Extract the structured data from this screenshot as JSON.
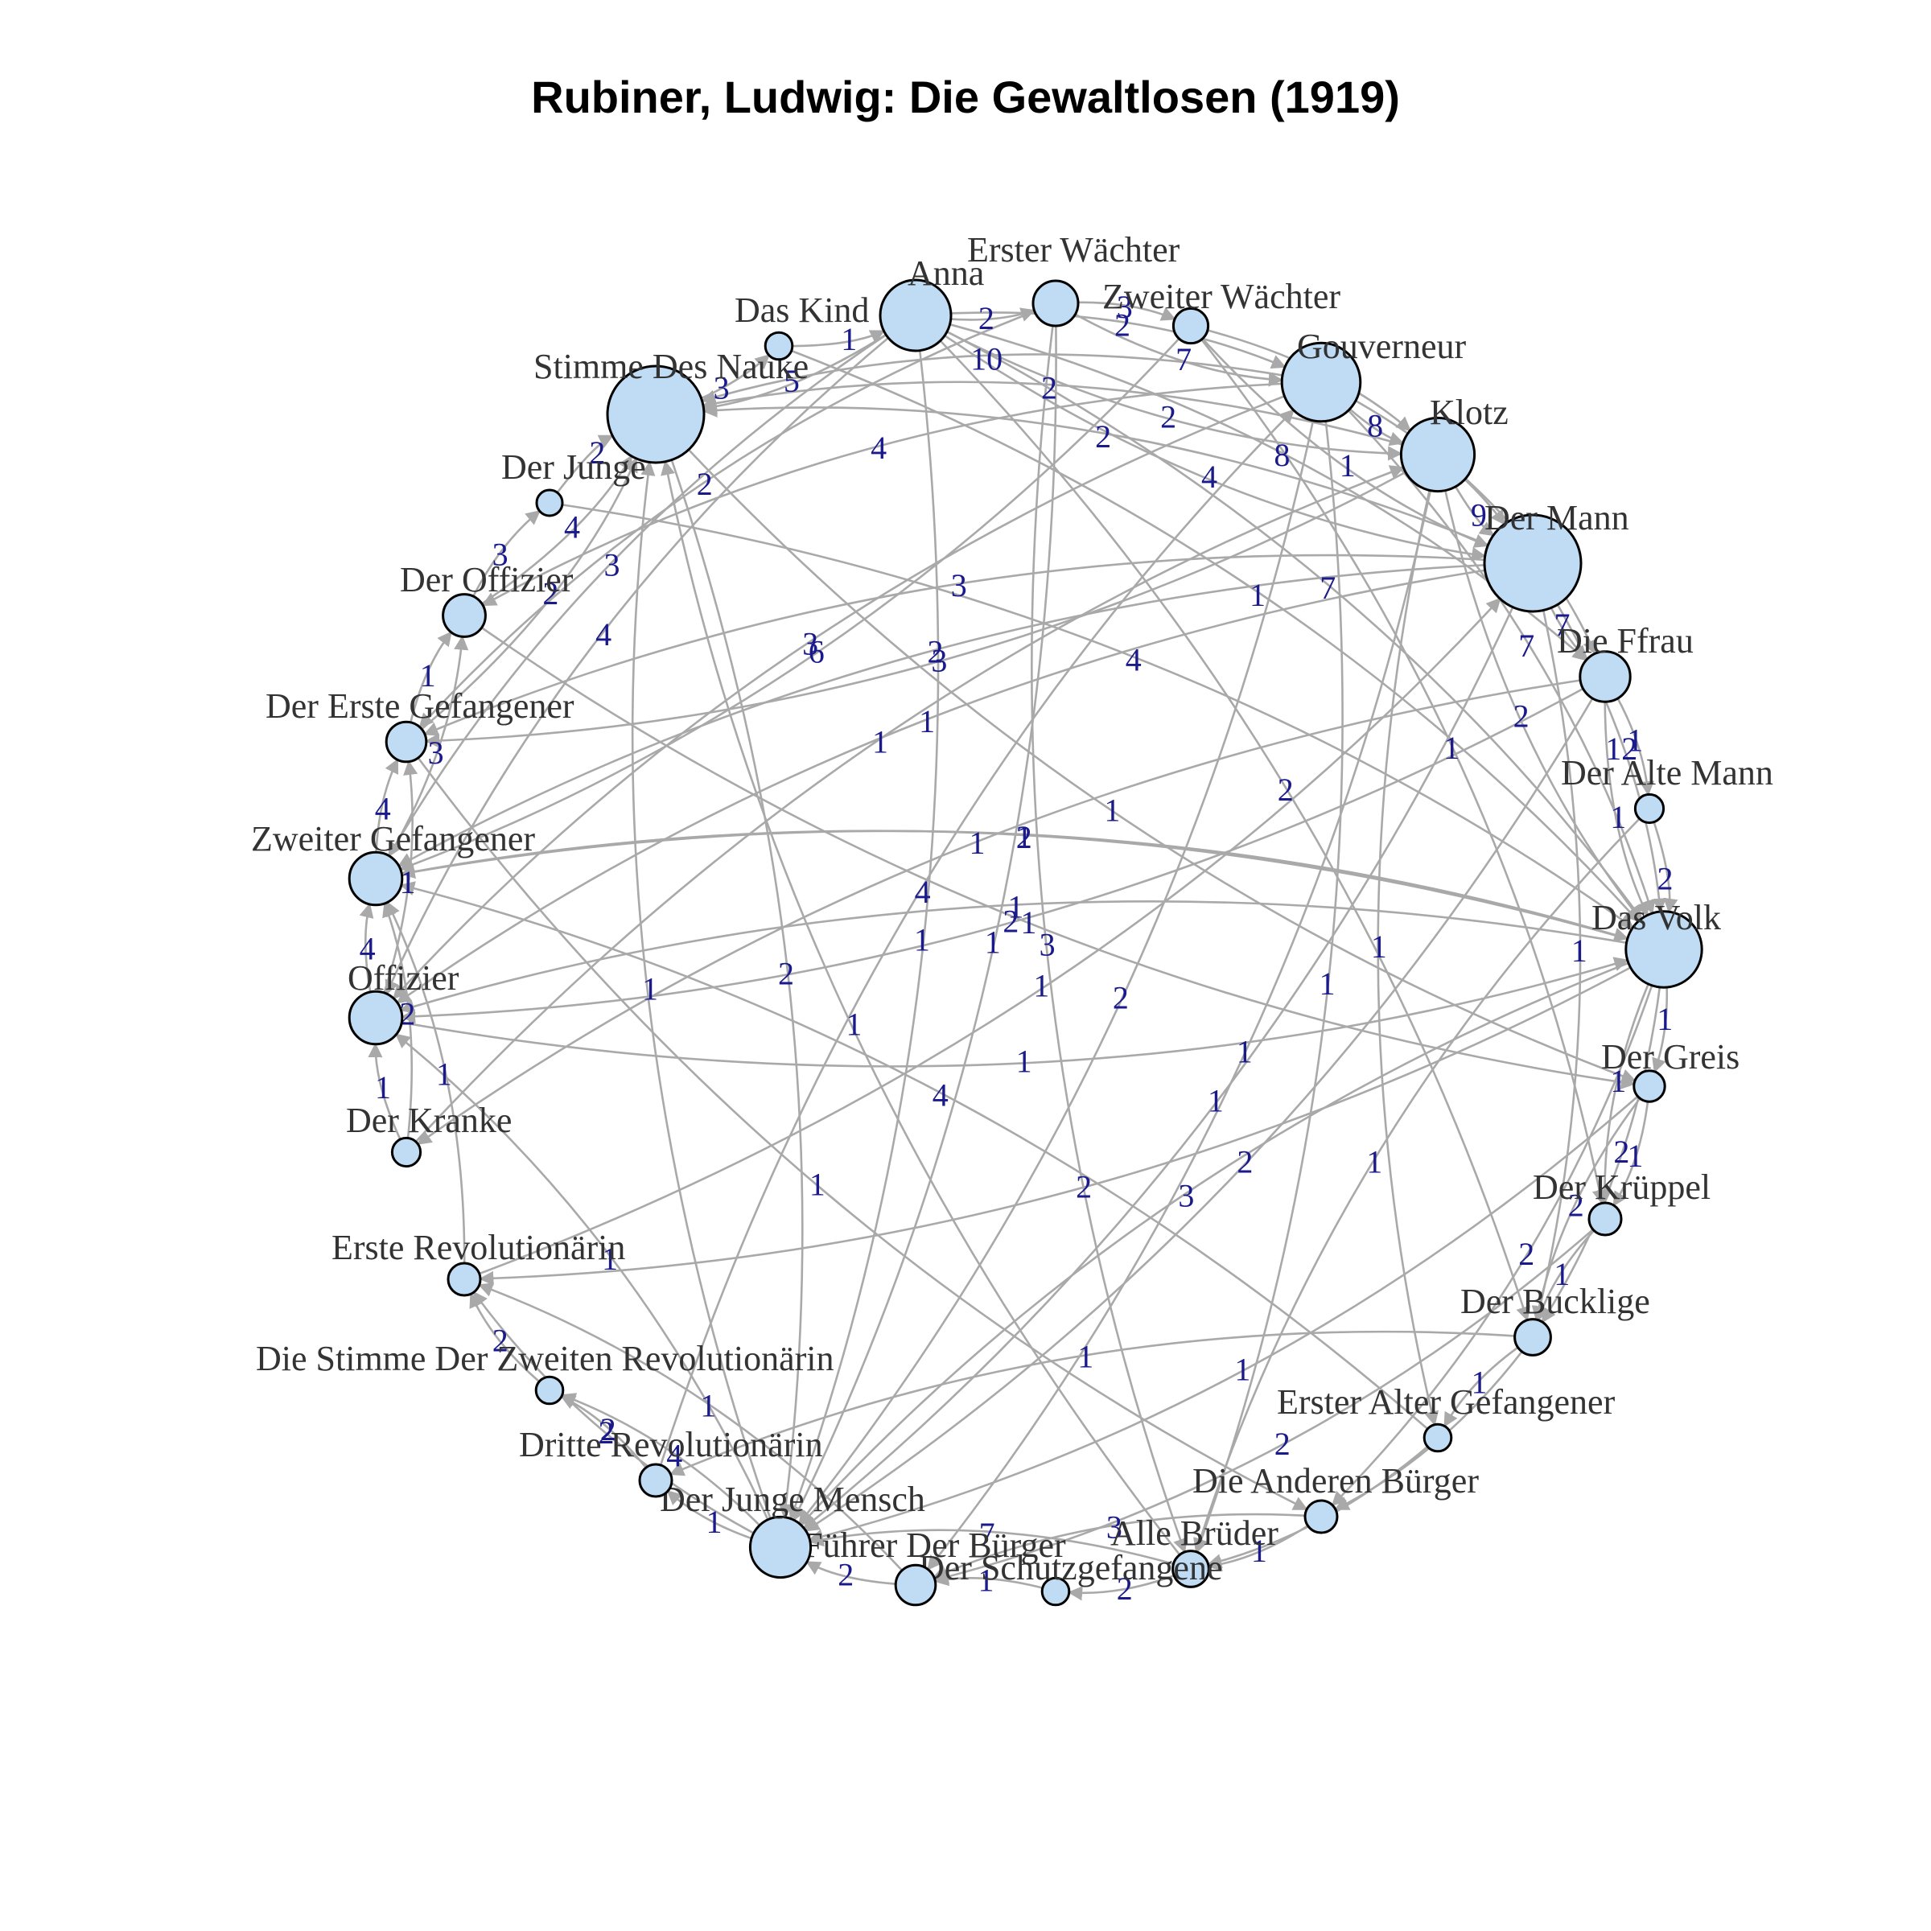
{
  "title": "Rubiner, Ludwig: Die Gewaltlosen (1919)",
  "colors": {
    "node_fill": "#bfdcf4",
    "edge": "#a9a9a9",
    "edge_label": "#1a1a8c",
    "node_label": "#333333"
  },
  "nodes": [
    {
      "id": "anna",
      "label": "Anna",
      "size": 4
    },
    {
      "id": "erster-waechter",
      "label": "Erster Wächter",
      "size": 2
    },
    {
      "id": "zweiter-waechter",
      "label": "Zweiter Wächter",
      "size": 1.2
    },
    {
      "id": "gouverneur",
      "label": "Gouverneur",
      "size": 4.6
    },
    {
      "id": "klotz",
      "label": "Klotz",
      "size": 4.2
    },
    {
      "id": "der-mann",
      "label": "Der Mann",
      "size": 6
    },
    {
      "id": "die-ffrau",
      "label": "Die Ffrau",
      "size": 2.4
    },
    {
      "id": "der-alte-mann",
      "label": "Der Alte Mann",
      "size": 0.7
    },
    {
      "id": "das-volk",
      "label": "Das Volk",
      "size": 4.4
    },
    {
      "id": "der-greis",
      "label": "Der Greis",
      "size": 0.9
    },
    {
      "id": "der-krueppel",
      "label": "Der Krüppel",
      "size": 1
    },
    {
      "id": "der-bucklige",
      "label": "Der Bucklige",
      "size": 1.3
    },
    {
      "id": "erster-alter-gefangener",
      "label": "Erster Alter Gefangener",
      "size": 0.6
    },
    {
      "id": "die-anderen-buerger",
      "label": "Die Anderen Bürger",
      "size": 1
    },
    {
      "id": "alle-brueder",
      "label": "Alle Brüder",
      "size": 1.3
    },
    {
      "id": "der-schutzgefangene",
      "label": "Der Schutzgefangene",
      "size": 0.6
    },
    {
      "id": "fuehrer-der-buerger",
      "label": "Führer Der Bürger",
      "size": 1.6
    },
    {
      "id": "der-junge-mensch",
      "label": "Der Junge Mensch",
      "size": 3.2
    },
    {
      "id": "dritte-revolutionaerin",
      "label": "Dritte Revolutionärin",
      "size": 1
    },
    {
      "id": "die-stimme-der-zweiten-revolutionaerin",
      "label": "Die Stimme Der Zweiten Revolutionärin",
      "size": 0.6
    },
    {
      "id": "erste-revolutionaerin",
      "label": "Erste Revolutionärin",
      "size": 1
    },
    {
      "id": "der-kranke",
      "label": "Der Kranke",
      "size": 0.7
    },
    {
      "id": "offizier",
      "label": "Offizier",
      "size": 2.6
    },
    {
      "id": "zweiter-gefangener",
      "label": "Zweiter Gefangener",
      "size": 2.6
    },
    {
      "id": "der-erste-gefangener",
      "label": "Der Erste Gefangener",
      "size": 1.6
    },
    {
      "id": "der-offizier",
      "label": "Der Offizier",
      "size": 1.8
    },
    {
      "id": "der-junge",
      "label": "Der Junge",
      "size": 0.5
    },
    {
      "id": "stimme-des-nauke",
      "label": "Stimme Des Nauke",
      "size": 6
    },
    {
      "id": "das-kind",
      "label": "Das Kind",
      "size": 0.6
    }
  ],
  "edges": [
    {
      "source": "anna",
      "target": "gouverneur",
      "weight": "2"
    },
    {
      "source": "anna",
      "target": "der-mann",
      "weight": "4"
    },
    {
      "source": "anna",
      "target": "das-volk",
      "weight": "7"
    },
    {
      "source": "anna",
      "target": "klotz",
      "weight": "2"
    },
    {
      "source": "anna",
      "target": "stimme-des-nauke",
      "weight": "5"
    },
    {
      "source": "anna",
      "target": "zweiter-gefangener",
      "weight": "3"
    },
    {
      "source": "anna",
      "target": "der-junge-mensch",
      "weight": "1"
    },
    {
      "source": "anna",
      "target": "erster-waechter",
      "weight": "2"
    },
    {
      "source": "anna",
      "target": "die-ffrau",
      "weight": "8"
    },
    {
      "source": "anna",
      "target": "offizier",
      "weight": "4"
    },
    {
      "source": "erster-waechter",
      "target": "zweiter-waechter",
      "weight": "3"
    },
    {
      "source": "erster-waechter",
      "target": "gouverneur",
      "weight": "7"
    },
    {
      "source": "erster-waechter",
      "target": "der-junge-mensch",
      "weight": "1"
    },
    {
      "source": "erster-waechter",
      "target": "der-erste-gefangener",
      "weight": "2"
    },
    {
      "source": "zweiter-waechter",
      "target": "klotz",
      "weight": "2"
    },
    {
      "source": "zweiter-waechter",
      "target": "der-mann",
      "weight": "1"
    },
    {
      "source": "zweiter-waechter",
      "target": "zweiter-gefangener",
      "weight": "6"
    },
    {
      "source": "gouverneur",
      "target": "klotz",
      "weight": "8"
    },
    {
      "source": "gouverneur",
      "target": "der-mann",
      "weight": "10"
    },
    {
      "source": "gouverneur",
      "target": "stimme-des-nauke",
      "weight": "10"
    },
    {
      "source": "gouverneur",
      "target": "das-volk",
      "weight": "7"
    },
    {
      "source": "gouverneur",
      "target": "der-offizier",
      "weight": "4"
    },
    {
      "source": "gouverneur",
      "target": "der-junge-mensch",
      "weight": "2"
    },
    {
      "source": "gouverneur",
      "target": "offizier",
      "weight": "3"
    },
    {
      "source": "gouverneur",
      "target": "alle-brueder",
      "weight": "1"
    },
    {
      "source": "klotz",
      "target": "der-mann",
      "weight": "9"
    },
    {
      "source": "klotz",
      "target": "die-ffrau",
      "weight": "6"
    },
    {
      "source": "klotz",
      "target": "stimme-des-nauke",
      "weight": "2"
    },
    {
      "source": "klotz",
      "target": "der-erste-gefangener",
      "weight": "3"
    },
    {
      "source": "klotz",
      "target": "das-volk",
      "weight": "2"
    },
    {
      "source": "klotz",
      "target": "fuehrer-der-buerger",
      "weight": "1"
    },
    {
      "source": "der-mann",
      "target": "die-ffrau",
      "weight": "7"
    },
    {
      "source": "der-mann",
      "target": "das-volk",
      "weight": "12"
    },
    {
      "source": "der-mann",
      "target": "stimme-des-nauke",
      "weight": "2"
    },
    {
      "source": "der-mann",
      "target": "der-junge-mensch",
      "weight": "1"
    },
    {
      "source": "der-mann",
      "target": "zweiter-gefangener",
      "weight": "2"
    },
    {
      "source": "der-mann",
      "target": "der-bucklige",
      "weight": "1"
    },
    {
      "source": "der-mann",
      "target": "offizier",
      "weight": "1"
    },
    {
      "source": "die-ffrau",
      "target": "der-alte-mann",
      "weight": "1"
    },
    {
      "source": "die-ffrau",
      "target": "das-volk",
      "weight": "1"
    },
    {
      "source": "die-ffrau",
      "target": "der-junge-mensch",
      "weight": "2"
    },
    {
      "source": "die-ffrau",
      "target": "der-kranke",
      "weight": "1"
    },
    {
      "source": "der-alte-mann",
      "target": "das-volk",
      "weight": "2"
    },
    {
      "source": "der-alte-mann",
      "target": "alle-brueder",
      "weight": "1"
    },
    {
      "source": "das-volk",
      "target": "der-greis",
      "weight": "1"
    },
    {
      "source": "das-volk",
      "target": "der-krueppel",
      "weight": "1"
    },
    {
      "source": "das-volk",
      "target": "der-bucklige",
      "weight": "2"
    },
    {
      "source": "das-volk",
      "target": "der-junge-mensch",
      "weight": "3"
    },
    {
      "source": "das-volk",
      "target": "erste-revolutionaerin",
      "weight": "2"
    },
    {
      "source": "das-volk",
      "target": "zweiter-gefangener",
      "weight": "1"
    },
    {
      "source": "das-volk",
      "target": "die-anderen-buerger",
      "weight": "2"
    },
    {
      "source": "das-volk",
      "target": "offizier",
      "weight": "1"
    },
    {
      "source": "der-greis",
      "target": "der-krueppel",
      "weight": "1"
    },
    {
      "source": "der-greis",
      "target": "der-bucklige",
      "weight": "2"
    },
    {
      "source": "der-greis",
      "target": "der-junge-mensch",
      "weight": "1"
    },
    {
      "source": "der-krueppel",
      "target": "der-bucklige",
      "weight": "1"
    },
    {
      "source": "der-krueppel",
      "target": "fuehrer-der-buerger",
      "weight": "2"
    },
    {
      "source": "der-bucklige",
      "target": "erster-alter-gefangener",
      "weight": "1"
    },
    {
      "source": "der-bucklige",
      "target": "die-anderen-buerger",
      "weight": "2"
    },
    {
      "source": "der-bucklige",
      "target": "dritte-revolutionaerin",
      "weight": "1"
    },
    {
      "source": "erster-alter-gefangener",
      "target": "alle-brueder",
      "weight": "2"
    },
    {
      "source": "erster-alter-gefangener",
      "target": "zweiter-gefangener",
      "weight": "4"
    },
    {
      "source": "die-anderen-buerger",
      "target": "alle-brueder",
      "weight": "1"
    },
    {
      "source": "die-anderen-buerger",
      "target": "fuehrer-der-buerger",
      "weight": "3"
    },
    {
      "source": "alle-brueder",
      "target": "der-schutzgefangene",
      "weight": "2"
    },
    {
      "source": "alle-brueder",
      "target": "der-junge-mensch",
      "weight": "7"
    },
    {
      "source": "alle-brueder",
      "target": "stimme-des-nauke",
      "weight": "1"
    },
    {
      "source": "der-schutzgefangene",
      "target": "fuehrer-der-buerger",
      "weight": "1"
    },
    {
      "source": "fuehrer-der-buerger",
      "target": "der-junge-mensch",
      "weight": "2"
    },
    {
      "source": "fuehrer-der-buerger",
      "target": "erste-revolutionaerin",
      "weight": "1"
    },
    {
      "source": "der-junge-mensch",
      "target": "dritte-revolutionaerin",
      "weight": "1"
    },
    {
      "source": "der-junge-mensch",
      "target": "die-stimme-der-zweiten-revolutionaerin",
      "weight": "4"
    },
    {
      "source": "der-junge-mensch",
      "target": "erste-revolutionaerin",
      "weight": "2"
    },
    {
      "source": "der-junge-mensch",
      "target": "offizier",
      "weight": "1"
    },
    {
      "source": "der-junge-mensch",
      "target": "stimme-des-nauke",
      "weight": "1"
    },
    {
      "source": "dritte-revolutionaerin",
      "target": "die-stimme-der-zweiten-revolutionaerin",
      "weight": "2"
    },
    {
      "source": "die-stimme-der-zweiten-revolutionaerin",
      "target": "erste-revolutionaerin",
      "weight": "2"
    },
    {
      "source": "erste-revolutionaerin",
      "target": "zweiter-gefangener",
      "weight": "1"
    },
    {
      "source": "der-kranke",
      "target": "offizier",
      "weight": "1"
    },
    {
      "source": "der-kranke",
      "target": "zweiter-gefangener",
      "weight": "2"
    },
    {
      "source": "offizier",
      "target": "zweiter-gefangener",
      "weight": "4"
    },
    {
      "source": "offizier",
      "target": "der-erste-gefangener",
      "weight": "1"
    },
    {
      "source": "zweiter-gefangener",
      "target": "der-erste-gefangener",
      "weight": "4"
    },
    {
      "source": "zweiter-gefangener",
      "target": "der-offizier",
      "weight": "3"
    },
    {
      "source": "der-erste-gefangener",
      "target": "der-offizier",
      "weight": "1"
    },
    {
      "source": "der-erste-gefangener",
      "target": "stimme-des-nauke",
      "weight": "2"
    },
    {
      "source": "der-offizier",
      "target": "der-junge",
      "weight": "3"
    },
    {
      "source": "der-offizier",
      "target": "stimme-des-nauke",
      "weight": "4"
    },
    {
      "source": "der-junge",
      "target": "stimme-des-nauke",
      "weight": "2"
    },
    {
      "source": "stimme-des-nauke",
      "target": "das-kind",
      "weight": "3"
    },
    {
      "source": "stimme-des-nauke",
      "target": "der-junge-mensch",
      "weight": "2"
    },
    {
      "source": "das-kind",
      "target": "anna",
      "weight": "1"
    },
    {
      "source": "das-kind",
      "target": "das-volk",
      "weight": "1"
    },
    {
      "source": "offizier",
      "target": "das-volk",
      "weight": "1"
    },
    {
      "source": "der-kranke",
      "target": "klotz",
      "weight": "1"
    },
    {
      "source": "erste-revolutionaerin",
      "target": "der-mann",
      "weight": "1"
    },
    {
      "source": "dritte-revolutionaerin",
      "target": "gouverneur",
      "weight": "4"
    },
    {
      "source": "der-offizier",
      "target": "der-greis",
      "weight": "1"
    },
    {
      "source": "zweiter-gefangener",
      "target": "das-volk",
      "weight": "2"
    },
    {
      "source": "der-erste-gefangener",
      "target": "die-anderen-buerger",
      "weight": "1"
    },
    {
      "source": "anna",
      "target": "der-bucklige",
      "weight": "2"
    },
    {
      "source": "erster-waechter",
      "target": "alle-brueder",
      "weight": "3"
    },
    {
      "source": "zweiter-waechter",
      "target": "der-krueppel",
      "weight": "1"
    },
    {
      "source": "klotz",
      "target": "erster-alter-gefangener",
      "weight": "1"
    },
    {
      "source": "der-junge",
      "target": "das-volk",
      "weight": "4"
    },
    {
      "source": "stimme-des-nauke",
      "target": "der-greis",
      "weight": "1"
    },
    {
      "source": "die-ffrau",
      "target": "offizier",
      "weight": "2"
    },
    {
      "source": "der-mann",
      "target": "der-erste-gefangener",
      "weight": "3"
    }
  ]
}
